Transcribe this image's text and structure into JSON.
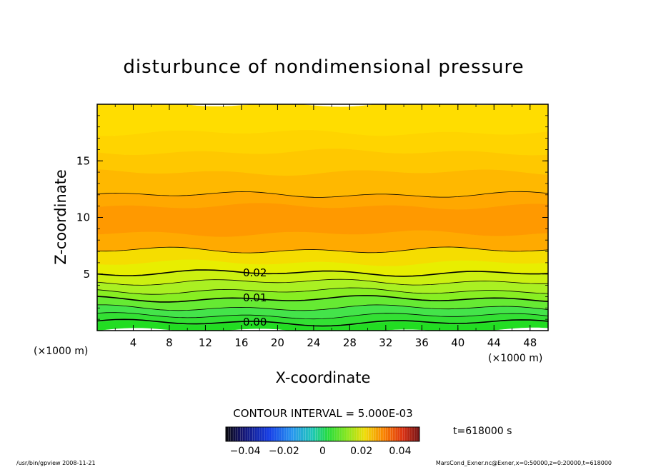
{
  "chart_data": {
    "type": "contour",
    "title": "disturbunce of nondimensional pressure",
    "xlabel": "X-coordinate",
    "ylabel": "Z-coordinate",
    "x_unit_left": "(×1000 m)",
    "x_unit_right": "(×1000 m)",
    "xlim": [
      0,
      50
    ],
    "ylim": [
      0,
      20
    ],
    "x_ticks": [
      "4",
      "8",
      "12",
      "16",
      "20",
      "24",
      "28",
      "32",
      "36",
      "40",
      "44",
      "48"
    ],
    "y_ticks": [
      "5",
      "10",
      "15"
    ],
    "contour_labels": [
      "0.02",
      "0.01",
      "0.00"
    ],
    "contour_interval_text": "CONTOUR INTERVAL = 5.000E-03",
    "colorbar_ticks": [
      "−0.04",
      "−0.02",
      "0",
      "0.02",
      "0.04"
    ],
    "colorbar_range": [
      -0.05,
      0.05
    ],
    "time_label": "t=618000 s",
    "bands": [
      {
        "z_from": 0.0,
        "z_to": 0.6,
        "color": "#22dd22"
      },
      {
        "z_from": 0.6,
        "z_to": 1.3,
        "color": "#33e033"
      },
      {
        "z_from": 1.3,
        "z_to": 2.0,
        "color": "#44e44a"
      },
      {
        "z_from": 2.0,
        "z_to": 2.8,
        "color": "#66ea33"
      },
      {
        "z_from": 2.8,
        "z_to": 3.5,
        "color": "#88ee22"
      },
      {
        "z_from": 3.5,
        "z_to": 4.3,
        "color": "#aaf022"
      },
      {
        "z_from": 4.3,
        "z_to": 5.1,
        "color": "#ccf011"
      },
      {
        "z_from": 5.1,
        "z_to": 6.0,
        "color": "#e8ee00"
      },
      {
        "z_from": 6.0,
        "z_to": 7.1,
        "color": "#f5dd00"
      },
      {
        "z_from": 7.1,
        "z_to": 8.6,
        "color": "#ffaa00"
      },
      {
        "z_from": 8.6,
        "z_to": 11.0,
        "color": "#ff9900"
      },
      {
        "z_from": 11.0,
        "z_to": 12.0,
        "color": "#ffa800"
      },
      {
        "z_from": 12.0,
        "z_to": 14.0,
        "color": "#ffb800"
      },
      {
        "z_from": 14.0,
        "z_to": 15.8,
        "color": "#ffc800"
      },
      {
        "z_from": 15.8,
        "z_to": 17.5,
        "color": "#ffd400"
      },
      {
        "z_from": 17.5,
        "z_to": 20.0,
        "color": "#ffdd00"
      }
    ],
    "contour_lines": [
      {
        "z": 0.7,
        "bold": true
      },
      {
        "z": 1.3,
        "bold": false
      },
      {
        "z": 2.0,
        "bold": false
      },
      {
        "z": 2.8,
        "bold": true
      },
      {
        "z": 3.5,
        "bold": false
      },
      {
        "z": 4.3,
        "bold": false
      },
      {
        "z": 5.1,
        "bold": true
      },
      {
        "z": 7.1,
        "bold": false
      },
      {
        "z": 12.0,
        "bold": false
      }
    ]
  },
  "footer": {
    "left": "/usr/bin/gpview   2008-11-21",
    "right": "MarsCond_Exner.nc@Exner,x=0:50000,z=0:20000,t=618000"
  }
}
